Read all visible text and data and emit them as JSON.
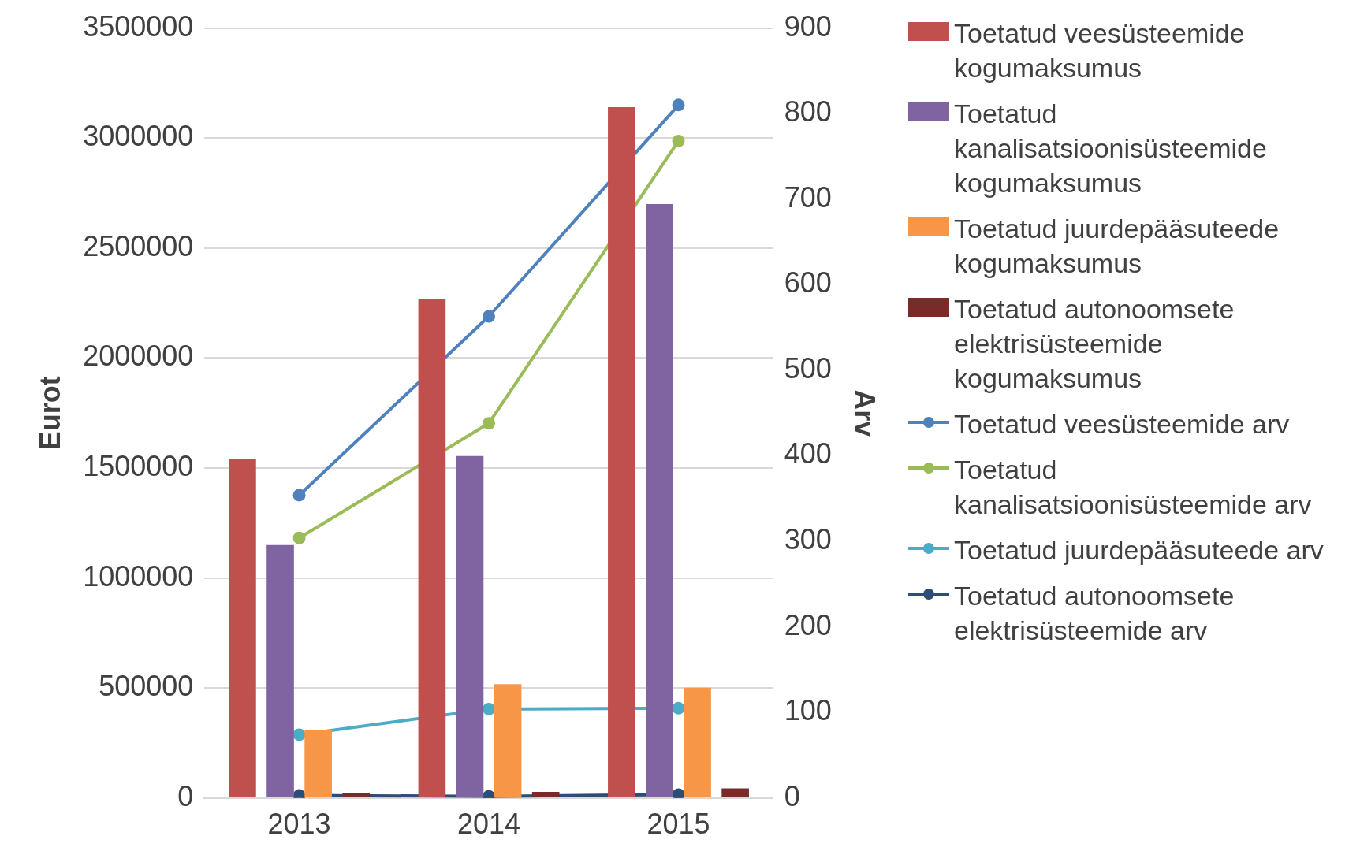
{
  "chart_data": {
    "type": "bar",
    "categories": [
      "2013",
      "2014",
      "2015"
    ],
    "ylabel": "Eurot",
    "y2label": "Arv",
    "ylim": [
      0,
      3500000
    ],
    "yticks": [
      0,
      500000,
      1000000,
      1500000,
      2000000,
      2500000,
      3000000,
      3500000
    ],
    "y2lim": [
      0,
      900
    ],
    "y2ticks": [
      0,
      100,
      200,
      300,
      400,
      500,
      600,
      700,
      800,
      900
    ],
    "grid": "y",
    "legend": "right",
    "marker": "circle",
    "series": [
      {
        "name": "Toetatud veesüsteemide kogumaksumus",
        "color": "#c0504d",
        "values": [
          1540000,
          2270000,
          3140000
        ]
      },
      {
        "name": "Toetatud kanalisatsioonisüsteemide kogumaksumus",
        "color": "#8064a2",
        "values": [
          1150000,
          1555000,
          2700000
        ]
      },
      {
        "name": "Toetatud juurdepääsuteede kogumaksumus",
        "color": "#f79646",
        "values": [
          310000,
          518000,
          502000
        ]
      },
      {
        "name": "Toetatud autonoomsete elektrisüsteemide kogumaksumus",
        "color": "#772c2a",
        "values": [
          24000,
          28000,
          44000
        ]
      },
      {
        "name": "Toetatud veesüsteemide arv",
        "type": "line",
        "axis": "y2",
        "color": "#4f81bd",
        "values": [
          354,
          563,
          810
        ]
      },
      {
        "name": "Toetatud kanalisatsioonisüsteemide arv",
        "type": "line",
        "axis": "y2",
        "color": "#9bbb59",
        "values": [
          304,
          438,
          768
        ]
      },
      {
        "name": "Toetatud juurdepääsuteede arv",
        "type": "line",
        "axis": "y2",
        "color": "#4bacc6",
        "values": [
          74,
          104,
          105
        ]
      },
      {
        "name": "Toetatud autonoomsete elektrisüsteemide arv",
        "type": "line",
        "axis": "y2",
        "color": "#2c4d75",
        "values": [
          3,
          2,
          4
        ]
      }
    ]
  }
}
